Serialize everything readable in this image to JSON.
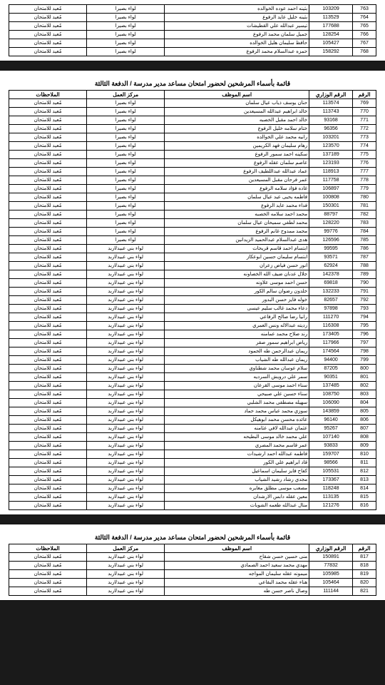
{
  "pageTitle": "قائمة بأسماء المرشحين لحضور امتحان مساعد مدير مدرسة / الدفعة الثالثة",
  "columns": {
    "idx": "الرقم",
    "min": "الرقم الوزاري",
    "name": "اسم الموظف",
    "center": "مركز العمل",
    "notes": "الملاحظات"
  },
  "centerA": "لواء بصيرا",
  "centerB": "لواء بني عبيد/اربد",
  "note": "مُعيد للامتحان",
  "section1": [
    {
      "idx": 763,
      "min": "103209",
      "name": "بثينه احمد عوده الخوالده"
    },
    {
      "idx": 764,
      "min": "113529",
      "name": "بثينه خليل عايد الرفوع"
    },
    {
      "idx": 765,
      "min": "177688",
      "name": "تيسير عبدالله علي القطيشات"
    },
    {
      "idx": 766,
      "min": "128254",
      "name": "جميل سلمان محمد الرفوع"
    },
    {
      "idx": 767,
      "min": "105427",
      "name": "حافظ سليمان هليل الخوالده"
    },
    {
      "idx": 768,
      "min": "158292",
      "name": "حمزه عبدالسلام محمد الرفوع"
    }
  ],
  "section2": [
    {
      "idx": 769,
      "min": "113574",
      "name": "حنان يوسف ذياب عيال سلمان",
      "c": "A"
    },
    {
      "idx": 770,
      "min": "113743",
      "name": "خالد ابراهيم عبدالله المسيعدين",
      "c": "A"
    },
    {
      "idx": 771,
      "min": "93168",
      "name": "خالد احمد مقبل الخصبه",
      "c": "A"
    },
    {
      "idx": 772,
      "min": "96356",
      "name": "ختام سلامه خليل الرفوع",
      "c": "A"
    },
    {
      "idx": 773,
      "min": "103201",
      "name": "رانيه محمد علي الخوالده",
      "c": "A"
    },
    {
      "idx": 774,
      "min": "123570",
      "name": "رهام سليمان فهد الكريمين",
      "c": "A"
    },
    {
      "idx": 775,
      "min": "137189",
      "name": "سكينه احمد سمور الرفوع",
      "c": "A"
    },
    {
      "idx": 776,
      "min": "123193",
      "name": "عاصم سلمان عقله الرفوع",
      "c": "A"
    },
    {
      "idx": 777,
      "min": "118913",
      "name": "عماد عبدالله عبداللطيف الرفوع",
      "c": "A"
    },
    {
      "idx": 778,
      "min": "117758",
      "name": "عمر فرحان مقبل المسيعدين",
      "c": "A"
    },
    {
      "idx": 779,
      "min": "106897",
      "name": "غاده فؤاد سلامه الرفوع",
      "c": "A"
    },
    {
      "idx": 780,
      "min": "100808",
      "name": "فاطمه يحيى عيد عيال سلمان",
      "c": "A"
    },
    {
      "idx": 781,
      "min": "150301",
      "name": "فداء محمد عايد الرفوع",
      "c": "A"
    },
    {
      "idx": 782,
      "min": "88797",
      "name": "محمد احمد سلامه الخصبه",
      "c": "A"
    },
    {
      "idx": 783,
      "min": "128220",
      "name": "محمد لطفي سميحان عيال سلمان",
      "c": "A"
    },
    {
      "idx": 784,
      "min": "99776",
      "name": "محمد ممدوح غانم الرفوع",
      "c": "A"
    },
    {
      "idx": 785,
      "min": "126596",
      "name": "هدى عبدالسلام عبدالحميد الزيدانين",
      "c": "A"
    },
    {
      "idx": 786,
      "min": "99595",
      "name": "ابتسام احمد قاسم قريحات",
      "c": "B"
    },
    {
      "idx": 787,
      "min": "93571",
      "name": "ابتسام سليمان حسين ابوعكاز",
      "c": "B"
    },
    {
      "idx": 788,
      "min": "62924",
      "name": "انور حسن فياض زعران",
      "c": "B"
    },
    {
      "idx": 789,
      "min": "142378",
      "name": "جلال عدنان ضيف الله الخصاونه",
      "c": "B"
    },
    {
      "idx": 790,
      "min": "69818",
      "name": "حسن احمد موسى علاونه",
      "c": "B"
    },
    {
      "idx": 791,
      "min": "132233",
      "name": "خلدون رضوان سالم الكور",
      "c": "B"
    },
    {
      "idx": 792,
      "min": "82657",
      "name": "خوله فايز حسن البدور",
      "c": "B"
    },
    {
      "idx": 793,
      "min": "97898",
      "name": "دعاء محمد غالب سليم عيسى",
      "c": "B"
    },
    {
      "idx": 794,
      "min": "111270",
      "name": "رانيا رضا صالح الرفاعي",
      "c": "B"
    },
    {
      "idx": 795,
      "min": "116308",
      "name": "رديته عبدالاله ونس العمري",
      "c": "B"
    },
    {
      "idx": 796,
      "min": "173405",
      "name": "رند صلاح محمد عمامنه",
      "c": "B"
    },
    {
      "idx": 797,
      "min": "117966",
      "name": "رياض ابراهيم سمور صقر",
      "c": "B"
    },
    {
      "idx": 798,
      "min": "174564",
      "name": "ريمان عبدالرحمن طه الحمود",
      "c": "B"
    },
    {
      "idx": 799,
      "min": "94400",
      "name": "ريمان عبدالله طه الشياب",
      "c": "B"
    },
    {
      "idx": 800,
      "min": "87205",
      "name": "سلام عوسان محمد شطناوي",
      "c": "B"
    },
    {
      "idx": 801,
      "min": "90351",
      "name": "سمر علي درويش السرديه",
      "c": "B"
    },
    {
      "idx": 802,
      "min": "137485",
      "name": "سناء احمد موسى القرعان",
      "c": "B"
    },
    {
      "idx": 803,
      "min": "108750",
      "name": "سناء حسين علي صبيحي",
      "c": "B"
    },
    {
      "idx": 804,
      "min": "106090",
      "name": "سهيله مصطفى محمد الشلبي",
      "c": "B"
    },
    {
      "idx": 805,
      "min": "143859",
      "name": "سوزي محمد عباس محمد حماد",
      "c": "B"
    },
    {
      "idx": 806,
      "min": "96140",
      "name": "عائده محسن محمد ابوهيكل",
      "c": "B"
    },
    {
      "idx": 807,
      "min": "95267",
      "name": "عثمان عبدالله لافي عثامنه",
      "c": "B"
    },
    {
      "idx": 808,
      "min": "107140",
      "name": "علي محمد خالد موسى البطيحه",
      "c": "B"
    },
    {
      "idx": 809,
      "min": "93833",
      "name": "عمر قاسم محمد المصري",
      "c": "B"
    },
    {
      "idx": 810,
      "min": "159707",
      "name": "فاطمه عبدالله احمد ارشيدات",
      "c": "B"
    },
    {
      "idx": 811,
      "min": "98566",
      "name": "قاد ابراهيم علي الكور",
      "c": "B"
    },
    {
      "idx": 812,
      "min": "105531",
      "name": "كفاح فايز سليمان اسماعيل",
      "c": "B"
    },
    {
      "idx": 813,
      "min": "173367",
      "name": "مجدي رشاد رشيد الشياب",
      "c": "B"
    },
    {
      "idx": 814,
      "min": "118248",
      "name": "مصعب موسى مطلق مغايره",
      "c": "B"
    },
    {
      "idx": 815,
      "min": "113135",
      "name": "معين عقله دابس الارشدان",
      "c": "B"
    },
    {
      "idx": 816,
      "min": "121276",
      "name": "منال عبدالله طعمه الشوبات",
      "c": "B"
    }
  ],
  "section3": [
    {
      "idx": 817,
      "min": "150891",
      "name": "منى حسين حسن شقاح",
      "c": "B"
    },
    {
      "idx": 818,
      "min": "77832",
      "name": "مهدي محمد سعيد احمد الصمادي",
      "c": "B"
    },
    {
      "idx": 819,
      "min": "105985",
      "name": "ميمونه عقله سليمان المواجه",
      "c": "B"
    },
    {
      "idx": 820,
      "min": "105464",
      "name": "هناء عقله محمد البقاعي",
      "c": "B"
    },
    {
      "idx": 821,
      "min": "111144",
      "name": "وصال ناصر حسن طه",
      "c": "B"
    }
  ]
}
